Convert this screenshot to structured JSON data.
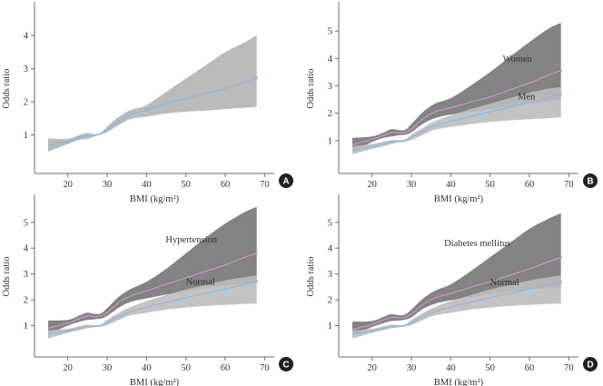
{
  "figure": {
    "background": "#ffffff",
    "axis_color": "#6b6b6b",
    "text_color": "#333333",
    "badge_color": "#231f20",
    "badge_text_color": "#ffffff"
  },
  "chart_data": [
    {
      "panel": "A",
      "type": "line",
      "title": "",
      "xlabel": "BMI (kg/m²)",
      "ylabel": "Odds ratio",
      "xlim": [
        12,
        72
      ],
      "ylim": [
        0,
        4.8
      ],
      "xticks": [
        20,
        30,
        40,
        50,
        60,
        70
      ],
      "yticks": [
        1,
        2,
        3,
        4
      ],
      "grid": false,
      "series": [
        {
          "name": "",
          "color": "#8fb7dc",
          "band_color": "#b4b4b4",
          "x": [
            15,
            20,
            23,
            25,
            27,
            28.5,
            30,
            33,
            36,
            40,
            45,
            50,
            55,
            60,
            65,
            68
          ],
          "y": [
            0.68,
            0.8,
            0.92,
            0.98,
            1.0,
            1.05,
            1.15,
            1.42,
            1.62,
            1.75,
            1.95,
            2.1,
            2.25,
            2.4,
            2.6,
            2.72
          ],
          "lower": [
            0.5,
            0.72,
            0.85,
            0.88,
            0.96,
            1.02,
            1.08,
            1.3,
            1.48,
            1.55,
            1.65,
            1.7,
            1.73,
            1.78,
            1.82,
            1.85
          ],
          "upper": [
            0.9,
            0.88,
            1.0,
            1.06,
            1.02,
            1.08,
            1.25,
            1.55,
            1.75,
            1.9,
            2.3,
            2.7,
            3.1,
            3.5,
            3.8,
            4.02
          ],
          "end_label": ""
        }
      ],
      "badge": "A"
    },
    {
      "panel": "B",
      "type": "line",
      "title": "",
      "xlabel": "BMI (kg/m²)",
      "ylabel": "Odds ratio",
      "xlim": [
        12,
        72
      ],
      "ylim": [
        0,
        5.8
      ],
      "xticks": [
        20,
        30,
        40,
        50,
        60,
        70
      ],
      "yticks": [
        1,
        2,
        3,
        4,
        5
      ],
      "grid": false,
      "series": [
        {
          "name": "Women",
          "color": "#c89ac4",
          "band_color": "#7c7c7c",
          "x": [
            15,
            20,
            23,
            25,
            27,
            28.5,
            30,
            33,
            36,
            40,
            45,
            50,
            55,
            60,
            65,
            68
          ],
          "y": [
            0.85,
            1.05,
            1.2,
            1.3,
            1.28,
            1.3,
            1.42,
            1.8,
            2.05,
            2.2,
            2.4,
            2.6,
            2.85,
            3.1,
            3.4,
            3.55
          ],
          "lower": [
            0.6,
            0.95,
            1.1,
            1.15,
            1.2,
            1.22,
            1.3,
            1.62,
            1.82,
            1.95,
            2.05,
            2.15,
            2.25,
            2.35,
            2.45,
            2.52
          ],
          "upper": [
            1.1,
            1.15,
            1.3,
            1.42,
            1.38,
            1.4,
            1.6,
            2.05,
            2.35,
            2.55,
            3.0,
            3.5,
            4.05,
            4.6,
            5.1,
            5.3
          ],
          "end_label": "Women"
        },
        {
          "name": "Men",
          "color": "#8fb7dc",
          "band_color": "#bdbdbd",
          "x": [
            15,
            20,
            23,
            25,
            27,
            28.5,
            30,
            33,
            36,
            40,
            45,
            50,
            55,
            60,
            65,
            68
          ],
          "y": [
            0.62,
            0.78,
            0.88,
            0.95,
            0.98,
            1.0,
            1.12,
            1.35,
            1.55,
            1.7,
            1.88,
            2.05,
            2.22,
            2.4,
            2.58,
            2.7
          ],
          "lower": [
            0.5,
            0.7,
            0.8,
            0.88,
            0.94,
            0.97,
            1.02,
            1.22,
            1.4,
            1.5,
            1.6,
            1.68,
            1.74,
            1.78,
            1.82,
            1.85
          ],
          "upper": [
            0.8,
            0.88,
            0.96,
            1.02,
            1.02,
            1.05,
            1.22,
            1.48,
            1.72,
            1.92,
            2.15,
            2.35,
            2.55,
            2.75,
            2.9,
            2.95
          ],
          "end_label": "Men"
        }
      ],
      "badge": "B"
    },
    {
      "panel": "C",
      "type": "line",
      "title": "",
      "xlabel": "BMI (kg/m²)",
      "ylabel": "Odds ratio",
      "xlim": [
        12,
        72
      ],
      "ylim": [
        0,
        5.8
      ],
      "xticks": [
        20,
        30,
        40,
        50,
        60,
        70
      ],
      "yticks": [
        1,
        2,
        3,
        4,
        5
      ],
      "grid": false,
      "series": [
        {
          "name": "Hypertension",
          "color": "#c89ac4",
          "band_color": "#7c7c7c",
          "x": [
            15,
            20,
            23,
            25,
            27,
            28.5,
            30,
            33,
            36,
            40,
            45,
            50,
            55,
            60,
            65,
            68
          ],
          "y": [
            0.9,
            1.1,
            1.28,
            1.38,
            1.35,
            1.38,
            1.5,
            1.9,
            2.15,
            2.35,
            2.6,
            2.85,
            3.1,
            3.35,
            3.65,
            3.8
          ],
          "lower": [
            0.65,
            1.0,
            1.15,
            1.22,
            1.25,
            1.28,
            1.38,
            1.7,
            1.92,
            2.05,
            2.2,
            2.32,
            2.45,
            2.55,
            2.62,
            2.65
          ],
          "upper": [
            1.2,
            1.22,
            1.4,
            1.5,
            1.45,
            1.48,
            1.68,
            2.12,
            2.42,
            2.7,
            3.2,
            3.8,
            4.4,
            4.95,
            5.4,
            5.6
          ],
          "end_label": "Hypertension"
        },
        {
          "name": "Normal",
          "color": "#8fb7dc",
          "band_color": "#bdbdbd",
          "x": [
            15,
            20,
            23,
            25,
            27,
            28.5,
            30,
            33,
            36,
            40,
            45,
            50,
            55,
            60,
            65,
            68
          ],
          "y": [
            0.65,
            0.8,
            0.9,
            0.96,
            0.98,
            1.0,
            1.12,
            1.35,
            1.55,
            1.72,
            1.9,
            2.08,
            2.25,
            2.42,
            2.6,
            2.72
          ],
          "lower": [
            0.5,
            0.72,
            0.82,
            0.9,
            0.94,
            0.97,
            1.02,
            1.22,
            1.4,
            1.5,
            1.62,
            1.7,
            1.76,
            1.8,
            1.84,
            1.86
          ],
          "upper": [
            0.82,
            0.88,
            0.98,
            1.04,
            1.02,
            1.05,
            1.22,
            1.5,
            1.72,
            1.95,
            2.18,
            2.4,
            2.58,
            2.75,
            2.88,
            2.95
          ],
          "end_label": "Normal"
        }
      ],
      "badge": "C"
    },
    {
      "panel": "D",
      "type": "line",
      "title": "",
      "xlabel": "BMI (kg/m²)",
      "ylabel": "Odds ratio",
      "xlim": [
        12,
        72
      ],
      "ylim": [
        0,
        5.8
      ],
      "xticks": [
        20,
        30,
        40,
        50,
        60,
        70
      ],
      "yticks": [
        1,
        2,
        3,
        4,
        5
      ],
      "grid": false,
      "series": [
        {
          "name": "Diabetes mellitus",
          "color": "#c89ac4",
          "band_color": "#7c7c7c",
          "x": [
            15,
            20,
            23,
            25,
            27,
            28.5,
            30,
            33,
            36,
            40,
            45,
            50,
            55,
            60,
            65,
            68
          ],
          "y": [
            0.85,
            1.05,
            1.22,
            1.32,
            1.3,
            1.33,
            1.45,
            1.82,
            2.08,
            2.25,
            2.48,
            2.7,
            2.95,
            3.2,
            3.48,
            3.65
          ],
          "lower": [
            0.62,
            0.95,
            1.1,
            1.18,
            1.2,
            1.24,
            1.32,
            1.65,
            1.85,
            1.98,
            2.1,
            2.22,
            2.32,
            2.4,
            2.45,
            2.48
          ],
          "upper": [
            1.15,
            1.18,
            1.35,
            1.45,
            1.4,
            1.44,
            1.62,
            2.05,
            2.35,
            2.6,
            3.1,
            3.65,
            4.2,
            4.75,
            5.15,
            5.35
          ],
          "end_label": "Diabetes mellitus"
        },
        {
          "name": "Normal",
          "color": "#8fb7dc",
          "band_color": "#bdbdbd",
          "x": [
            15,
            20,
            23,
            25,
            27,
            28.5,
            30,
            33,
            36,
            40,
            45,
            50,
            55,
            60,
            65,
            68
          ],
          "y": [
            0.65,
            0.8,
            0.9,
            0.96,
            0.98,
            1.0,
            1.12,
            1.35,
            1.55,
            1.72,
            1.9,
            2.08,
            2.25,
            2.42,
            2.58,
            2.7
          ],
          "lower": [
            0.5,
            0.72,
            0.82,
            0.9,
            0.94,
            0.97,
            1.02,
            1.22,
            1.4,
            1.5,
            1.62,
            1.7,
            1.76,
            1.8,
            1.84,
            1.86
          ],
          "upper": [
            0.82,
            0.88,
            0.98,
            1.04,
            1.02,
            1.05,
            1.22,
            1.5,
            1.72,
            1.95,
            2.18,
            2.4,
            2.58,
            2.75,
            2.88,
            2.95
          ],
          "end_label": "Normal"
        }
      ],
      "badge": "D"
    }
  ]
}
